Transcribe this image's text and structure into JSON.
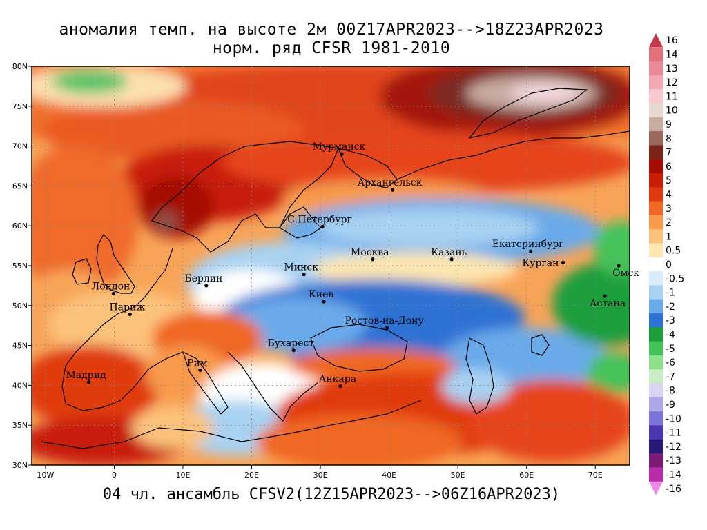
{
  "title_line1": "аномалия темп. на высоте 2м 00Z17APR2023-->18Z23APR2023",
  "title_line2": "норм. ряд CFSR 1981-2010",
  "bottom_label": "04 чл. ансамбль CFSV2(12Z15APR2023-->06Z16APR2023)",
  "map": {
    "lon_range": [
      -12,
      75
    ],
    "lat_range": [
      30,
      80
    ],
    "lon_ticks": [
      {
        "lon": -10,
        "label": "10W"
      },
      {
        "lon": 0,
        "label": "0"
      },
      {
        "lon": 10,
        "label": "10E"
      },
      {
        "lon": 20,
        "label": "20E"
      },
      {
        "lon": 30,
        "label": "30E"
      },
      {
        "lon": 40,
        "label": "40E"
      },
      {
        "lon": 50,
        "label": "50E"
      },
      {
        "lon": 60,
        "label": "60E"
      },
      {
        "lon": 70,
        "label": "70E"
      }
    ],
    "lat_ticks": [
      {
        "lat": 30,
        "label": "30N"
      },
      {
        "lat": 35,
        "label": "35N"
      },
      {
        "lat": 40,
        "label": "40N"
      },
      {
        "lat": 45,
        "label": "45N"
      },
      {
        "lat": 50,
        "label": "50N"
      },
      {
        "lat": 55,
        "label": "55N"
      },
      {
        "lat": 60,
        "label": "60N"
      },
      {
        "lat": 65,
        "label": "65N"
      },
      {
        "lat": 70,
        "label": "70N"
      },
      {
        "lat": 75,
        "label": "75N"
      },
      {
        "lat": 80,
        "label": "80N"
      }
    ],
    "cities": [
      {
        "name": "Мурманск",
        "lon": 33.1,
        "lat": 69.0
      },
      {
        "name": "Архангельск",
        "lon": 40.5,
        "lat": 64.5
      },
      {
        "name": "С.Петербург",
        "lon": 30.3,
        "lat": 59.9
      },
      {
        "name": "Москва",
        "lon": 37.6,
        "lat": 55.8
      },
      {
        "name": "Казань",
        "lon": 49.1,
        "lat": 55.8
      },
      {
        "name": "Екатеринбург",
        "lon": 60.6,
        "lat": 56.8
      },
      {
        "name": "Курган",
        "lon": 65.3,
        "lat": 55.4
      },
      {
        "name": "Омск",
        "lon": 73.4,
        "lat": 55.0
      },
      {
        "name": "Астана",
        "lon": 71.4,
        "lat": 51.2
      },
      {
        "name": "Минск",
        "lon": 27.6,
        "lat": 53.9
      },
      {
        "name": "Берлин",
        "lon": 13.4,
        "lat": 52.5
      },
      {
        "name": "Лондон",
        "lon": -0.1,
        "lat": 51.5
      },
      {
        "name": "Париж",
        "lon": 2.3,
        "lat": 48.9
      },
      {
        "name": "Киев",
        "lon": 30.5,
        "lat": 50.5
      },
      {
        "name": "Ростов-на-Дону",
        "lon": 39.7,
        "lat": 47.2
      },
      {
        "name": "Бухарест",
        "lon": 26.1,
        "lat": 44.4
      },
      {
        "name": "Рим",
        "lon": 12.5,
        "lat": 41.9
      },
      {
        "name": "Мадрид",
        "lon": -3.7,
        "lat": 40.4
      },
      {
        "name": "Анкара",
        "lon": 32.9,
        "lat": 39.9
      }
    ]
  },
  "colorbar": {
    "levels": [
      {
        "label": "16",
        "color": "#c33a4a"
      },
      {
        "label": "14",
        "color": "#e0707e"
      },
      {
        "label": "13",
        "color": "#ea8a98"
      },
      {
        "label": "12",
        "color": "#f2a8b4"
      },
      {
        "label": "11",
        "color": "#f7c8cf"
      },
      {
        "label": "10",
        "color": "#e8d8d2"
      },
      {
        "label": "9",
        "color": "#c8aca2"
      },
      {
        "label": "8",
        "color": "#9a6a5e"
      },
      {
        "label": "7",
        "color": "#7a2418"
      },
      {
        "label": "6",
        "color": "#a40c04"
      },
      {
        "label": "5",
        "color": "#c81e08"
      },
      {
        "label": "4",
        "color": "#e03a10"
      },
      {
        "label": "3",
        "color": "#f06824"
      },
      {
        "label": "2",
        "color": "#f89a4c"
      },
      {
        "label": "1",
        "color": "#fcc27c"
      },
      {
        "label": "0.5",
        "color": "#fde6b0"
      },
      {
        "label": "0",
        "color": "#ffffff"
      },
      {
        "label": "-0.5",
        "color": "#d8ecfb"
      },
      {
        "label": "-1",
        "color": "#a8d2f2"
      },
      {
        "label": "-2",
        "color": "#6aaaea"
      },
      {
        "label": "-3",
        "color": "#2e72d4"
      },
      {
        "label": "-4",
        "color": "#1c9e3c"
      },
      {
        "label": "-5",
        "color": "#44c25a"
      },
      {
        "label": "-6",
        "color": "#8ee08c"
      },
      {
        "label": "-7",
        "color": "#c8ecc4"
      },
      {
        "label": "-8",
        "color": "#d8d4f2"
      },
      {
        "label": "-9",
        "color": "#aca8e8"
      },
      {
        "label": "-10",
        "color": "#7c74d8"
      },
      {
        "label": "-11",
        "color": "#4a38b0"
      },
      {
        "label": "-12",
        "color": "#2a1878"
      },
      {
        "label": "-13",
        "color": "#7a1c76"
      },
      {
        "label": "-14",
        "color": "#b82caa"
      },
      {
        "label": "-16",
        "color": "#f08ae8"
      }
    ]
  }
}
